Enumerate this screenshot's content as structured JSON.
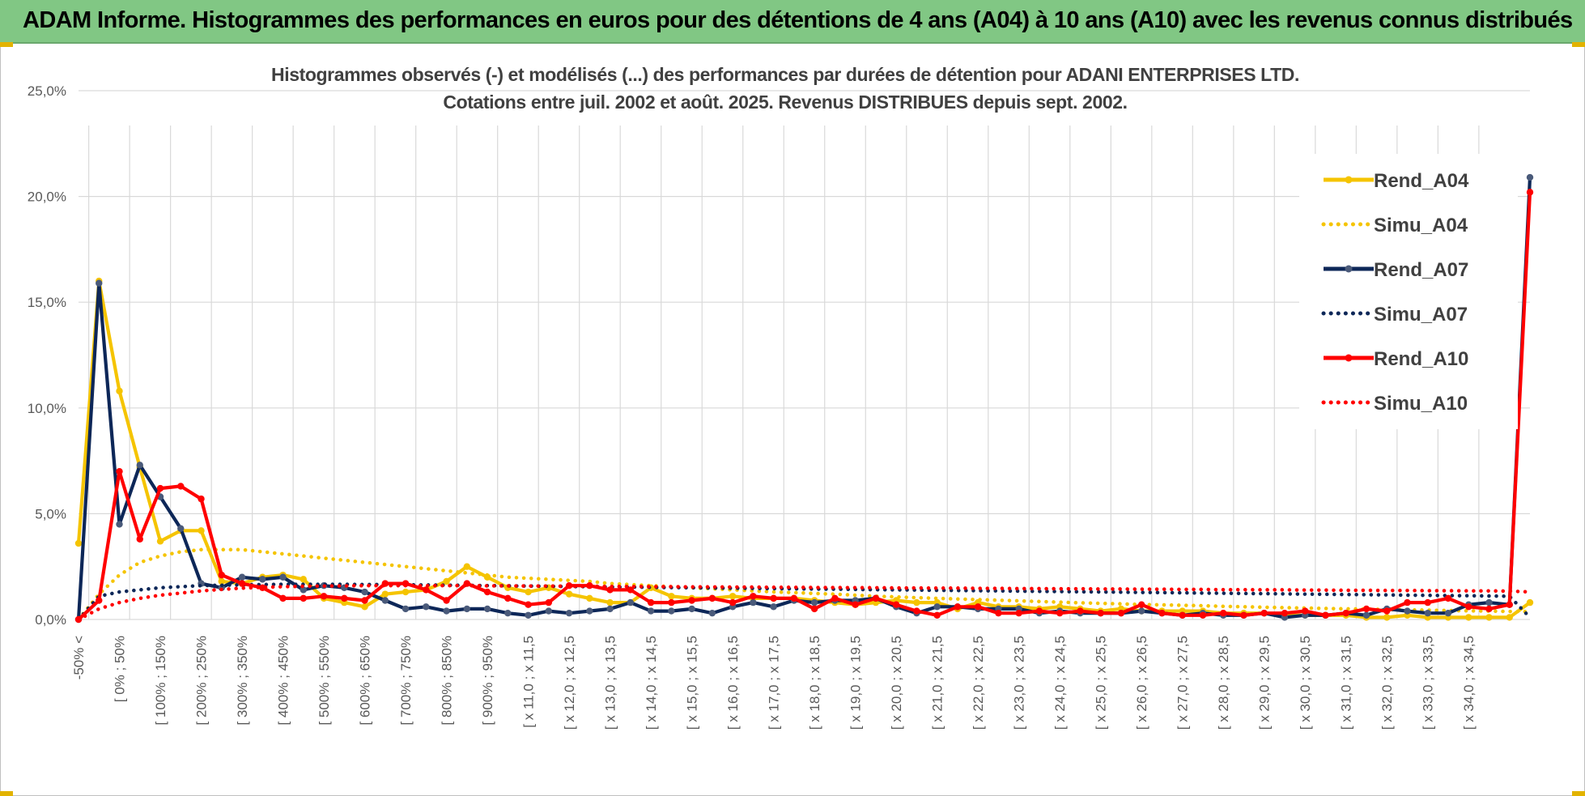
{
  "banner": {
    "title": "ADAM Informe. Histogrammes des performances en euros pour des détentions de 4 ans (A04) à 10 ans (A10) avec les revenus connus distribués"
  },
  "chart_data": {
    "type": "line",
    "title": "Histogrammes observés (-) et modélisés (...) des performances par durées de détention pour ADANI ENTERPRISES LTD.",
    "subtitle": "Cotations entre juil. 2002 et août. 2025. Revenus DISTRIBUES depuis sept. 2002.",
    "xlabel": "",
    "ylabel": "",
    "ylim": [
      0,
      25
    ],
    "yticks": [
      "0,0%",
      "5,0%",
      "10,0%",
      "15,0%",
      "20,0%",
      "25,0%"
    ],
    "grid": true,
    "legend_position": "right",
    "x_tick_labels": [
      "-50% <",
      "[ 0% ; 50%",
      "[ 100% ; 150%",
      "[ 200% ; 250%",
      "[ 300% ; 350%",
      "[ 400% ; 450%",
      "[ 500% ; 550%",
      "[ 600% ; 650%",
      "[ 700% ; 750%",
      "[ 800% ; 850%",
      "[ 900% ; 950%",
      "[ x 11,0 ; x 11,5",
      "[ x 12,0 ; x 12,5",
      "[ x 13,0 ; x 13,5",
      "[ x 14,0 ; x 14,5",
      "[ x 15,0 ; x 15,5",
      "[ x 16,0 ; x 16,5",
      "[ x 17,0 ; x 17,5",
      "[ x 18,0 ; x 18,5",
      "[ x 19,0 ; x 19,5",
      "[ x 20,0 ; x 20,5",
      "[ x 21,0 ; x 21,5",
      "[ x 22,0 ; x 22,5",
      "[ x 23,0 ; x 23,5",
      "[ x 24,0 ; x 24,5",
      "[ x 25,0 ; x 25,5",
      "[ x 26,0 ; x 26,5",
      "[ x 27,0 ; x 27,5",
      "[ x 28,0 ; x 28,5",
      "[ x 29,0 ; x 29,5",
      "[ x 30,0 ; x 30,5",
      "[ x 31,0 ; x 31,5",
      "[ x 32,0 ; x 32,5",
      "[ x 33,0 ; x 33,5",
      "[ x 34,0 ; x 34,5"
    ],
    "series": [
      {
        "name": "Rend_A04",
        "style": "solid",
        "color": "#f5c400",
        "values": [
          3.6,
          16.0,
          10.8,
          7.2,
          3.7,
          4.2,
          4.2,
          1.8,
          1.7,
          2.0,
          2.1,
          1.9,
          1.0,
          0.8,
          0.6,
          1.2,
          1.3,
          1.4,
          1.8,
          2.5,
          2.0,
          1.5,
          1.3,
          1.5,
          1.2,
          1.0,
          0.8,
          0.8,
          1.5,
          1.1,
          1.0,
          1.0,
          1.1,
          1.0,
          1.0,
          1.0,
          0.9,
          0.8,
          0.7,
          0.8,
          0.9,
          0.8,
          0.8,
          0.5,
          0.8,
          0.6,
          0.6,
          0.5,
          0.6,
          0.5,
          0.4,
          0.5,
          0.4,
          0.4,
          0.4,
          0.4,
          0.3,
          0.3,
          0.3,
          0.2,
          0.2,
          0.2,
          0.2,
          0.1,
          0.1,
          0.2,
          0.1,
          0.1,
          0.1,
          0.1,
          0.1,
          0.8
        ]
      },
      {
        "name": "Simu_A04",
        "style": "dotted",
        "color": "#f5c400",
        "values": [
          0.0,
          1.2,
          2.1,
          2.7,
          3.0,
          3.2,
          3.3,
          3.3,
          3.3,
          3.2,
          3.1,
          3.0,
          2.9,
          2.8,
          2.7,
          2.6,
          2.5,
          2.4,
          2.3,
          2.2,
          2.1,
          2.0,
          1.95,
          1.9,
          1.85,
          1.8,
          1.7,
          1.65,
          1.6,
          1.55,
          1.5,
          1.45,
          1.4,
          1.35,
          1.3,
          1.27,
          1.23,
          1.2,
          1.15,
          1.1,
          1.07,
          1.03,
          1.0,
          0.97,
          0.94,
          0.91,
          0.88,
          0.85,
          0.82,
          0.79,
          0.76,
          0.74,
          0.71,
          0.69,
          0.67,
          0.65,
          0.62,
          0.6,
          0.58,
          0.56,
          0.54,
          0.52,
          0.5,
          0.49,
          0.47,
          0.45,
          0.44,
          0.42,
          0.41,
          0.4,
          0.38,
          0.37
        ]
      },
      {
        "name": "Rend_A07",
        "style": "solid",
        "color": "#0d2758",
        "values": [
          0.0,
          15.9,
          4.5,
          7.3,
          5.8,
          4.3,
          1.7,
          1.5,
          2.0,
          1.9,
          2.0,
          1.4,
          1.6,
          1.5,
          1.3,
          0.9,
          0.5,
          0.6,
          0.4,
          0.5,
          0.5,
          0.3,
          0.2,
          0.4,
          0.3,
          0.4,
          0.5,
          0.8,
          0.4,
          0.4,
          0.5,
          0.3,
          0.6,
          0.8,
          0.6,
          0.9,
          0.8,
          0.9,
          0.9,
          1.0,
          0.6,
          0.3,
          0.6,
          0.6,
          0.5,
          0.5,
          0.5,
          0.3,
          0.4,
          0.3,
          0.3,
          0.3,
          0.4,
          0.3,
          0.2,
          0.3,
          0.2,
          0.2,
          0.3,
          0.1,
          0.2,
          0.2,
          0.3,
          0.2,
          0.5,
          0.4,
          0.3,
          0.3,
          0.7,
          0.8,
          0.7,
          20.9
        ]
      },
      {
        "name": "Simu_A07",
        "style": "dotted",
        "color": "#0d2758",
        "values": [
          0.0,
          1.1,
          1.3,
          1.4,
          1.5,
          1.55,
          1.6,
          1.62,
          1.64,
          1.65,
          1.66,
          1.66,
          1.66,
          1.66,
          1.65,
          1.65,
          1.64,
          1.63,
          1.62,
          1.61,
          1.6,
          1.59,
          1.58,
          1.57,
          1.56,
          1.55,
          1.54,
          1.53,
          1.52,
          1.51,
          1.5,
          1.49,
          1.48,
          1.47,
          1.46,
          1.45,
          1.44,
          1.43,
          1.42,
          1.41,
          1.4,
          1.39,
          1.38,
          1.37,
          1.36,
          1.35,
          1.34,
          1.33,
          1.32,
          1.31,
          1.3,
          1.29,
          1.28,
          1.27,
          1.26,
          1.25,
          1.24,
          1.23,
          1.22,
          1.21,
          1.2,
          1.19,
          1.18,
          1.17,
          1.16,
          1.15,
          1.14,
          1.13,
          1.12,
          1.11,
          1.1,
          0.1
        ]
      },
      {
        "name": "Rend_A10",
        "style": "solid",
        "color": "#ff0000",
        "values": [
          0.0,
          0.9,
          7.0,
          3.8,
          6.2,
          6.3,
          5.7,
          2.1,
          1.7,
          1.5,
          1.0,
          1.0,
          1.1,
          1.0,
          0.9,
          1.7,
          1.7,
          1.4,
          0.9,
          1.7,
          1.3,
          1.0,
          0.7,
          0.8,
          1.6,
          1.6,
          1.4,
          1.4,
          0.8,
          0.8,
          0.9,
          1.0,
          0.8,
          1.1,
          1.0,
          1.0,
          0.5,
          1.0,
          0.7,
          1.0,
          0.7,
          0.4,
          0.2,
          0.6,
          0.6,
          0.3,
          0.3,
          0.4,
          0.3,
          0.4,
          0.3,
          0.3,
          0.7,
          0.3,
          0.2,
          0.2,
          0.3,
          0.2,
          0.3,
          0.3,
          0.4,
          0.2,
          0.3,
          0.5,
          0.4,
          0.8,
          0.8,
          1.0,
          0.6,
          0.5,
          0.7,
          20.2
        ]
      },
      {
        "name": "Simu_A10",
        "style": "dotted",
        "color": "#ff0000",
        "values": [
          0.0,
          0.5,
          0.8,
          1.0,
          1.15,
          1.25,
          1.35,
          1.42,
          1.48,
          1.52,
          1.55,
          1.57,
          1.58,
          1.59,
          1.6,
          1.6,
          1.6,
          1.6,
          1.6,
          1.6,
          1.59,
          1.59,
          1.58,
          1.58,
          1.57,
          1.57,
          1.56,
          1.56,
          1.55,
          1.55,
          1.54,
          1.54,
          1.53,
          1.53,
          1.52,
          1.52,
          1.51,
          1.51,
          1.5,
          1.5,
          1.49,
          1.49,
          1.48,
          1.48,
          1.47,
          1.47,
          1.46,
          1.46,
          1.45,
          1.45,
          1.44,
          1.44,
          1.43,
          1.43,
          1.42,
          1.42,
          1.41,
          1.41,
          1.4,
          1.4,
          1.39,
          1.39,
          1.38,
          1.38,
          1.37,
          1.37,
          1.36,
          1.36,
          1.35,
          1.35,
          1.34,
          1.3
        ]
      }
    ]
  }
}
